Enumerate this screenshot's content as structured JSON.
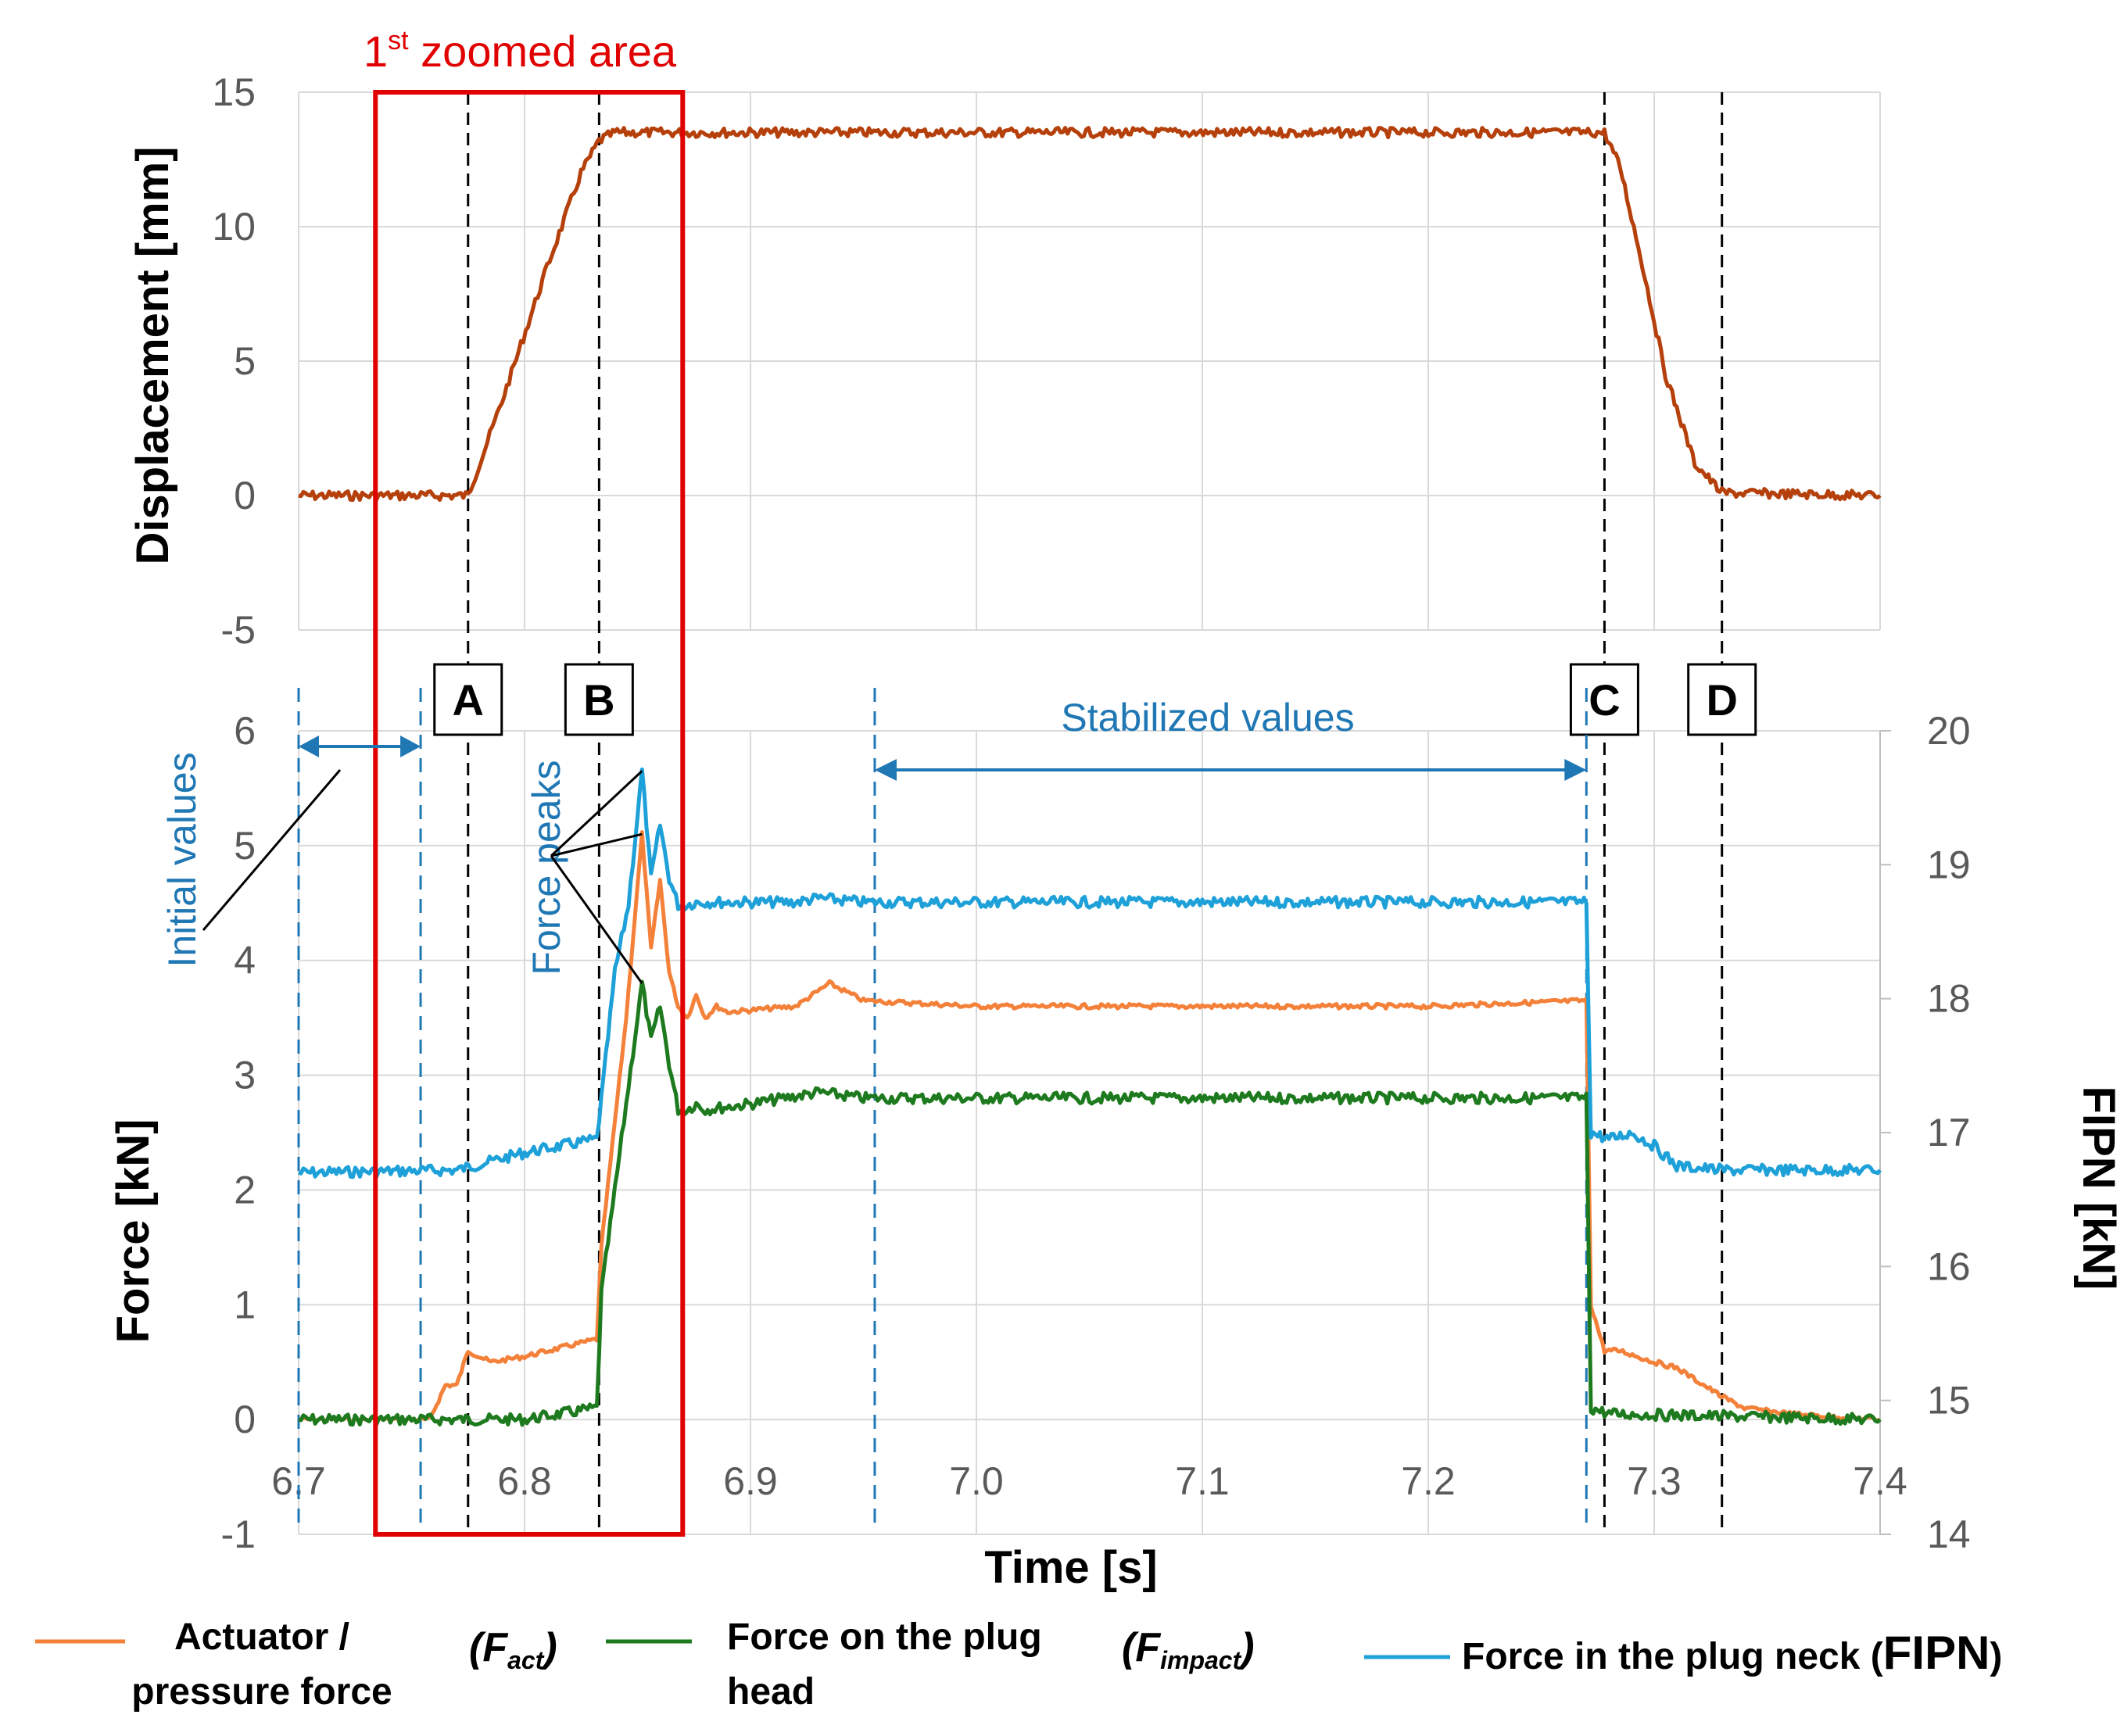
{
  "chart_data": [
    {
      "type": "line",
      "ylabel": "Displacement [mm]",
      "ylim": [
        -5,
        15
      ],
      "yticks": [
        "15",
        "10",
        "5",
        "0",
        "-5"
      ],
      "xlim": [
        6.7,
        7.4
      ],
      "grid": true,
      "series": [
        {
          "color": "#b5400b",
          "x": [
            6.7,
            6.775,
            6.79,
            6.81,
            6.825,
            6.833,
            6.84,
            6.85,
            7.0,
            7.15,
            7.278,
            7.285,
            7.295,
            7.305,
            7.318,
            7.33,
            7.4
          ],
          "y": [
            0,
            0,
            3.5,
            8.5,
            12,
            13.2,
            13.5,
            13.5,
            13.5,
            13.5,
            13.5,
            12.2,
            8.5,
            4.5,
            1.2,
            0.1,
            0
          ]
        }
      ],
      "annotations": {
        "zoom_label_main": "1",
        "zoom_label_sup": "st",
        "zoom_label_rest": " zoomed area",
        "zoom_range": [
          6.734,
          6.87
        ]
      }
    },
    {
      "type": "line",
      "xlabel": "Time [s]",
      "ylabel": "Force [kN]",
      "y2label": "FIPN [kN]",
      "ylim": [
        -1,
        6
      ],
      "y2lim": [
        14,
        20
      ],
      "xlim": [
        6.7,
        7.4
      ],
      "xticks": [
        "6.7",
        "6.8",
        "6.9",
        "7.0",
        "7.1",
        "7.2",
        "7.3",
        "7.4"
      ],
      "yticks": [
        "6",
        "5",
        "4",
        "3",
        "2",
        "1",
        "0",
        "-1"
      ],
      "y2ticks": [
        "20",
        "19",
        "18",
        "17",
        "16",
        "15",
        "14"
      ],
      "grid": true,
      "series": [
        {
          "name_prefix": "Actuator /",
          "name_line2": "pressure force",
          "symbol_main": "F",
          "symbol_sub": "act",
          "color": "#f4813a",
          "axis": "left",
          "x": [
            6.7,
            6.758,
            6.765,
            6.77,
            6.775,
            6.785,
            6.8,
            6.832,
            6.834,
            6.84,
            6.845,
            6.852,
            6.856,
            6.86,
            6.864,
            6.868,
            6.872,
            6.876,
            6.88,
            6.885,
            6.89,
            6.92,
            6.935,
            6.95,
            7.0,
            7.1,
            7.2,
            7.27,
            7.272,
            7.278,
            7.285,
            7.3,
            7.31,
            7.33,
            7.34,
            7.36,
            7.4
          ],
          "y": [
            0,
            0,
            0.3,
            0.3,
            0.6,
            0.5,
            0.55,
            0.7,
            1.5,
            2.6,
            3.5,
            5.1,
            4.1,
            4.7,
            3.9,
            3.6,
            3.5,
            3.7,
            3.5,
            3.6,
            3.55,
            3.6,
            3.8,
            3.65,
            3.6,
            3.6,
            3.6,
            3.65,
            1.0,
            0.6,
            0.6,
            0.5,
            0.45,
            0.2,
            0.1,
            0.05,
            0
          ]
        },
        {
          "name": "Force on the plug",
          "name_line2": "head",
          "symbol_main": "F",
          "symbol_sub": "impact",
          "color": "#1e7a1e",
          "axis": "left",
          "x": [
            6.7,
            6.8,
            6.832,
            6.834,
            6.84,
            6.846,
            6.852,
            6.856,
            6.86,
            6.864,
            6.868,
            6.872,
            6.876,
            6.88,
            6.9,
            6.93,
            6.95,
            7.1,
            7.27,
            7.272,
            7.28,
            7.4
          ],
          "y": [
            0,
            0,
            0.1,
            1.1,
            2.0,
            2.9,
            3.8,
            3.3,
            3.6,
            3.1,
            2.7,
            2.7,
            2.75,
            2.7,
            2.75,
            2.85,
            2.8,
            2.8,
            2.8,
            0.1,
            0.05,
            0
          ]
        },
        {
          "name": "Force in the plug neck",
          "symbol": "FIPN",
          "color": "#1ea0d8",
          "axis": "right",
          "x": [
            6.7,
            6.77,
            6.8,
            6.832,
            6.835,
            6.84,
            6.846,
            6.852,
            6.856,
            6.86,
            6.864,
            6.868,
            6.872,
            6.876,
            6.88,
            6.92,
            6.93,
            6.95,
            7.1,
            7.27,
            7.272,
            7.28,
            7.29,
            7.3,
            7.31,
            7.33,
            7.4
          ],
          "y": [
            16.7,
            16.72,
            16.85,
            16.95,
            17.4,
            18.2,
            18.7,
            19.7,
            18.9,
            19.3,
            18.9,
            18.7,
            18.7,
            18.72,
            18.72,
            18.72,
            18.75,
            18.72,
            18.72,
            18.72,
            17.0,
            16.95,
            17.0,
            16.9,
            16.75,
            16.72,
            16.72
          ]
        }
      ],
      "markers": [
        {
          "label": "A",
          "x": 6.775
        },
        {
          "label": "B",
          "x": 6.833
        },
        {
          "label": "C",
          "x": 7.278
        },
        {
          "label": "D",
          "x": 7.33
        }
      ],
      "blue_lines": [
        6.7,
        6.754,
        6.955,
        7.27
      ],
      "annotations": {
        "initial_values": "Initial values",
        "force_peaks": "Force peaks",
        "stabilized_values": "Stabilized values"
      }
    }
  ]
}
